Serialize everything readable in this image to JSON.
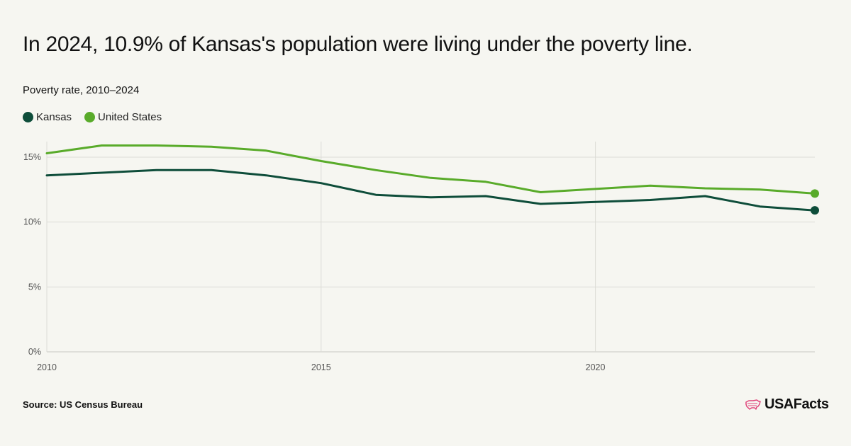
{
  "header": {
    "title": "In 2024, 10.9% of Kansas's population were living under the poverty line.",
    "subtitle": "Poverty rate, 2010–2024"
  },
  "legend": [
    {
      "label": "Kansas",
      "color": "#0e4d3a"
    },
    {
      "label": "United States",
      "color": "#59ab2a"
    }
  ],
  "footer": {
    "source": "Source: US Census Bureau",
    "logo_text": "USAFacts",
    "logo_icon": "us-map-icon",
    "logo_color": "#e0457b"
  },
  "chart_data": {
    "type": "line",
    "x": [
      2010,
      2011,
      2012,
      2013,
      2014,
      2015,
      2016,
      2017,
      2018,
      2019,
      2020,
      2021,
      2022,
      2023,
      2024
    ],
    "xlim": [
      2010,
      2024
    ],
    "xticks": [
      2010,
      2015,
      2020
    ],
    "xtick_labels": [
      "2010",
      "2015",
      "2020"
    ],
    "ylim": [
      0,
      15
    ],
    "yticks": [
      0,
      5,
      10,
      15
    ],
    "ytick_labels": [
      "0%",
      "5%",
      "10%",
      "15%"
    ],
    "grid": true,
    "legend_position": "top-left",
    "series": [
      {
        "name": "Kansas",
        "color": "#0e4d3a",
        "values": [
          13.6,
          13.8,
          14.0,
          14.0,
          13.6,
          13.0,
          12.1,
          11.9,
          12.0,
          11.4,
          null,
          11.7,
          12.0,
          11.2,
          10.9
        ]
      },
      {
        "name": "United States",
        "color": "#59ab2a",
        "values": [
          15.3,
          15.9,
          15.9,
          15.8,
          15.5,
          14.7,
          14.0,
          13.4,
          13.1,
          12.3,
          null,
          12.8,
          12.6,
          12.5,
          12.2
        ]
      }
    ]
  }
}
